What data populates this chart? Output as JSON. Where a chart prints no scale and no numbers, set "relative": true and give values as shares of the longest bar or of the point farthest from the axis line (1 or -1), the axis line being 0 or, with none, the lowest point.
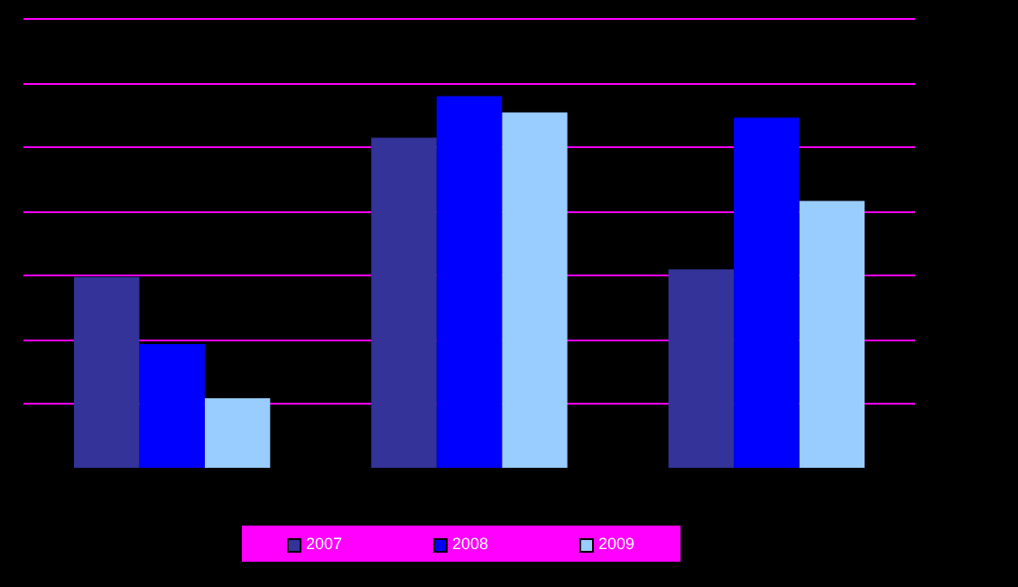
{
  "chart_data": {
    "type": "bar",
    "relative": true,
    "categories": [
      null,
      null,
      null
    ],
    "series": [
      {
        "name": "2007",
        "color": "#333399",
        "values": [
          0.513,
          0.888,
          0.534
        ]
      },
      {
        "name": "2008",
        "color": "#0000ff",
        "values": [
          0.333,
          1,
          0.942
        ]
      },
      {
        "name": "2009",
        "color": "#99ccff",
        "values": [
          0.187,
          0.956,
          0.718
        ]
      }
    ],
    "ref_lines": [
      {
        "axis": "y",
        "value": 0.173,
        "color": "#ff00ff"
      },
      {
        "axis": "y",
        "value": 0.345,
        "color": "#ff00ff"
      },
      {
        "axis": "y",
        "value": 0.518,
        "color": "#ff00ff"
      },
      {
        "axis": "y",
        "value": 0.69,
        "color": "#ff00ff"
      },
      {
        "axis": "y",
        "value": 0.863,
        "color": "#ff00ff"
      },
      {
        "axis": "y",
        "value": 1.035,
        "color": "#ff00ff"
      },
      {
        "axis": "y",
        "value": 1.208,
        "color": "#ff00ff"
      }
    ],
    "legend": "bottom"
  }
}
